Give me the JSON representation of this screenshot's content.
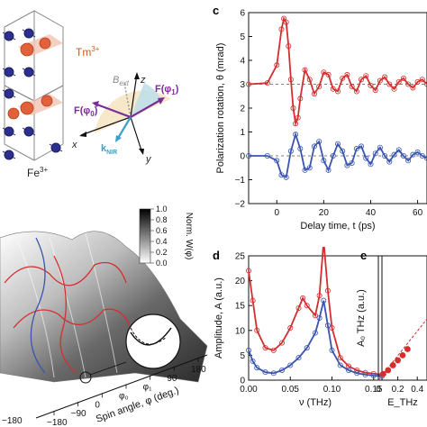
{
  "panel_letters": {
    "c": "c",
    "d": "d",
    "e": "e"
  },
  "panel_a": {
    "tm_label": "Tm",
    "tm_sup": "3+",
    "fe_label": "Fe",
    "fe_sup": "3+",
    "b_label": "B",
    "b_sub": "ext",
    "z_label": "z",
    "x_label": "x",
    "y_label": "y",
    "f0_label": "F(φ",
    "f0_sub": "0",
    "f1_label": "F(φ",
    "f1_sub": "1",
    "k_label": "k",
    "k_sub": "NIR",
    "colors": {
      "tm": "#e2603a",
      "fe": "#2c2f8c",
      "arrow_f": "#7a2d95",
      "k": "#3aa0c8"
    }
  },
  "panel_b": {
    "colorbar_label": "Norm. W(φ)",
    "colorbar_ticks": [
      "1.0",
      "0.8",
      "0.6",
      "0.4",
      "0.2",
      "0.0"
    ],
    "phi_ticks": [
      "180",
      "90",
      "φ₁",
      "φ₀",
      "0",
      "−90",
      "−180"
    ],
    "phi_axis_label": "Spin angle, φ (deg.)",
    "left_tick_partial": "−180"
  },
  "chart_data": [
    {
      "type": "line",
      "panel": "c",
      "xlabel": "Delay time, t (ps)",
      "ylabel": "Polarization rotation, θ (mrad)",
      "xlim": [
        -12,
        64
      ],
      "ylim": [
        -2,
        6
      ],
      "x_ticks": [
        "0",
        "20",
        "40",
        "60"
      ],
      "y_ticks": [
        "−2",
        "−1",
        "0",
        "1",
        "2",
        "3",
        "4",
        "5",
        "6"
      ],
      "baselines": [
        3,
        0
      ],
      "series": [
        {
          "color": "#d32f2f",
          "offset": 3,
          "x": [
            -12,
            -4,
            0,
            2,
            3,
            4,
            5,
            6,
            7,
            8,
            9,
            10,
            12,
            14,
            16,
            18,
            20,
            22,
            24,
            26,
            28,
            30,
            32,
            34,
            36,
            38,
            40,
            42,
            44,
            46,
            48,
            50,
            52,
            54,
            56,
            58,
            60,
            62,
            64
          ],
          "values": [
            3.0,
            3.05,
            3.8,
            5.3,
            5.75,
            5.6,
            4.6,
            3.2,
            2.0,
            1.35,
            1.6,
            2.4,
            3.6,
            3.2,
            2.6,
            2.9,
            3.5,
            3.4,
            2.8,
            2.7,
            3.25,
            3.4,
            2.9,
            2.7,
            3.2,
            3.35,
            2.95,
            2.75,
            3.15,
            3.3,
            3.0,
            2.8,
            3.1,
            3.25,
            3.0,
            2.85,
            3.1,
            3.2,
            3.0
          ]
        },
        {
          "color": "#3a55b0",
          "offset": 0,
          "x": [
            -12,
            -4,
            0,
            2,
            4,
            6,
            8,
            10,
            12,
            14,
            16,
            18,
            20,
            22,
            24,
            26,
            28,
            30,
            32,
            34,
            36,
            38,
            40,
            42,
            44,
            46,
            48,
            50,
            52,
            54,
            56,
            58,
            60,
            62,
            64
          ],
          "values": [
            0.0,
            0.0,
            -0.2,
            -0.8,
            -0.9,
            0.2,
            0.9,
            0.3,
            -0.6,
            -0.5,
            0.4,
            0.6,
            -0.2,
            -0.6,
            0.0,
            0.5,
            0.2,
            -0.4,
            -0.3,
            0.3,
            0.4,
            -0.1,
            -0.35,
            0.1,
            0.35,
            0.0,
            -0.25,
            0.05,
            0.25,
            0.0,
            -0.2,
            0.05,
            0.15,
            0.0,
            -0.1
          ]
        }
      ]
    },
    {
      "type": "line",
      "panel": "d",
      "xlabel": "ν (THz)",
      "ylabel": "Amplitude, A (a.u.)",
      "xlim": [
        0,
        0.16
      ],
      "ylim": [
        0,
        25
      ],
      "x_ticks": [
        "0.00",
        "0.05",
        "0.10",
        "0.15"
      ],
      "y_ticks": [
        "0",
        "5",
        "10",
        "15",
        "20",
        "25"
      ],
      "series": [
        {
          "color": "#d32f2f",
          "x": [
            0.0,
            0.005,
            0.01,
            0.02,
            0.03,
            0.04,
            0.05,
            0.06,
            0.065,
            0.07,
            0.08,
            0.085,
            0.09,
            0.095,
            0.1,
            0.11,
            0.12,
            0.13,
            0.14,
            0.15,
            0.16
          ],
          "values": [
            22,
            16,
            10,
            6.5,
            6.0,
            7.5,
            10.5,
            14.5,
            16.5,
            15.0,
            13.0,
            17.0,
            28.0,
            18.0,
            10.5,
            4.5,
            2.8,
            2.0,
            1.5,
            1.3,
            1.1
          ]
        },
        {
          "color": "#3a55b0",
          "x": [
            0.0,
            0.005,
            0.01,
            0.02,
            0.03,
            0.04,
            0.05,
            0.06,
            0.07,
            0.08,
            0.085,
            0.09,
            0.095,
            0.1,
            0.11,
            0.12,
            0.13,
            0.14,
            0.15,
            0.16
          ],
          "values": [
            6.0,
            3.8,
            2.5,
            1.6,
            1.4,
            2.0,
            3.0,
            4.5,
            6.5,
            9.5,
            12.5,
            16.0,
            11.0,
            6.0,
            3.0,
            2.0,
            1.4,
            1.1,
            0.9,
            0.8
          ]
        }
      ]
    },
    {
      "type": "scatter",
      "panel": "e",
      "xlabel": "E_THz",
      "ylabel": "A₀ THz (a.u.)",
      "xlim": [
        0,
        0.5
      ],
      "ylim": [
        0,
        1
      ],
      "x_ticks": [
        "0",
        "0.2",
        "0.4"
      ],
      "series": [
        {
          "color": "#d32f2f",
          "x": [
            0.05,
            0.1,
            0.15,
            0.2,
            0.25,
            0.3
          ],
          "values": [
            0.05,
            0.08,
            0.12,
            0.16,
            0.2,
            0.25
          ]
        }
      ]
    }
  ]
}
